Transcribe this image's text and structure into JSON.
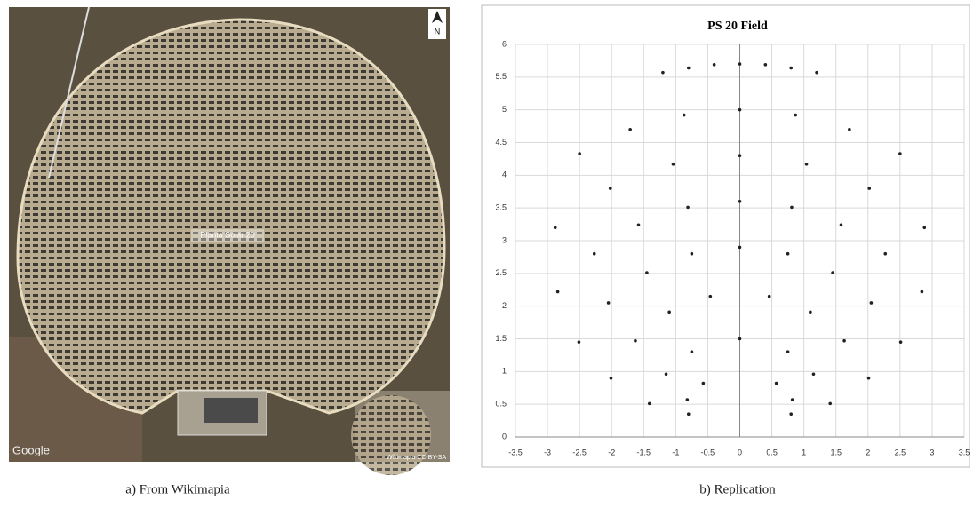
{
  "figure": {
    "image_texts": {
      "compass": "N",
      "place_label": "Planta Solar 20",
      "logo": "Google",
      "credit": "Wikimapia CC-BY-SA"
    },
    "captions": [
      "a) From Wikimapia",
      "b) Replication"
    ]
  },
  "chart_data": {
    "type": "scatter",
    "title": "PS 20 Field",
    "color": "#222222",
    "grid": true,
    "xlim": [
      -3.5,
      3.5
    ],
    "ylim": [
      0,
      6
    ],
    "xticks": [
      -3.5,
      -3,
      -2.5,
      -2,
      -1.5,
      -1,
      -0.5,
      0,
      0.5,
      1,
      1.5,
      2,
      2.5,
      3,
      3.5
    ],
    "yticks": [
      0,
      0.5,
      1,
      1.5,
      2,
      2.5,
      3,
      3.5,
      4,
      4.5,
      5,
      5.5,
      6
    ],
    "x": [
      -1.2,
      -0.8,
      -0.4,
      0,
      0.4,
      0.8,
      1.2,
      -2.5,
      -1.71,
      -0.87,
      0,
      0.87,
      1.71,
      2.5,
      -2.88,
      -2.02,
      -1.04,
      0,
      1.04,
      2.02,
      2.88,
      -2.84,
      -2.27,
      -1.58,
      -0.81,
      0,
      0.81,
      1.58,
      2.27,
      2.84,
      -2.51,
      -2.05,
      -1.45,
      -0.75,
      0,
      0.75,
      1.45,
      2.05,
      2.51,
      -2.01,
      -1.63,
      -1.1,
      -0.46,
      0.46,
      1.1,
      1.63,
      2.01,
      -1.41,
      -1.15,
      -0.75,
      0,
      0.75,
      1.15,
      1.41,
      -0.82,
      -0.57,
      0.57,
      0.82,
      -0.8,
      0.8
    ],
    "y": [
      5.57,
      5.64,
      5.69,
      5.7,
      5.69,
      5.64,
      5.57,
      4.33,
      4.7,
      4.92,
      5,
      4.92,
      4.7,
      4.33,
      3.2,
      3.8,
      4.17,
      4.3,
      4.17,
      3.8,
      3.2,
      2.22,
      2.8,
      3.24,
      3.51,
      3.6,
      3.51,
      3.24,
      2.8,
      2.22,
      1.45,
      2.05,
      2.51,
      2.8,
      2.9,
      2.8,
      2.51,
      2.05,
      1.45,
      0.9,
      1.47,
      1.91,
      2.15,
      2.15,
      1.91,
      1.47,
      0.9,
      0.51,
      0.96,
      1.3,
      1.5,
      1.3,
      0.96,
      0.51,
      0.57,
      0.82,
      0.82,
      0.57,
      0.35,
      0.35
    ]
  }
}
